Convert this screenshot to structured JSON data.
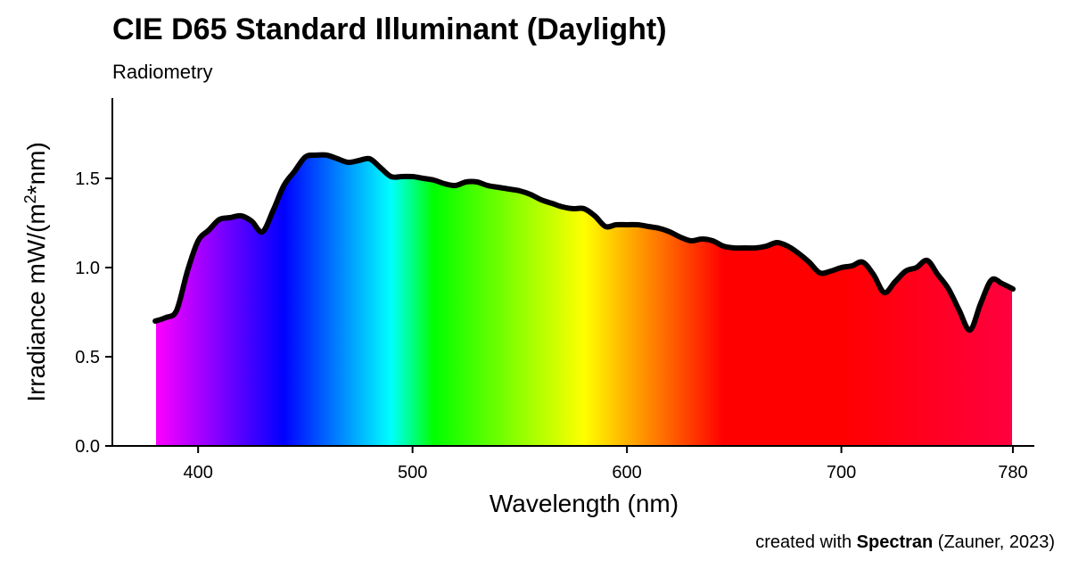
{
  "chart_data": {
    "type": "area",
    "title": "CIE D65 Standard Illuminant (Daylight)",
    "subtitle": "Radiometry",
    "xlabel": "Wavelength (nm)",
    "ylabel_prefix": "Irradiance  mW/(m",
    "ylabel_sup": "2",
    "ylabel_suffix": "*nm)",
    "xlim": [
      360,
      790
    ],
    "ylim": [
      0,
      2.0
    ],
    "x_ticks": [
      400,
      500,
      600,
      700,
      780
    ],
    "y_ticks": [
      0.0,
      0.5,
      1.0,
      1.5
    ],
    "y_tick_labels": [
      "0.0",
      "0.5",
      "1.0",
      "1.5"
    ],
    "fill": "visible-spectrum gradient",
    "line_color": "#000000",
    "grid": false,
    "legend": "none",
    "series": [
      {
        "x": [
          380,
          385,
          390,
          395,
          400,
          405,
          410,
          415,
          420,
          425,
          430,
          435,
          440,
          445,
          450,
          455,
          460,
          465,
          470,
          475,
          480,
          485,
          490,
          495,
          500,
          505,
          510,
          515,
          520,
          525,
          530,
          535,
          540,
          545,
          550,
          555,
          560,
          565,
          570,
          575,
          580,
          585,
          590,
          595,
          600,
          605,
          610,
          615,
          620,
          625,
          630,
          635,
          640,
          645,
          650,
          655,
          660,
          665,
          670,
          675,
          680,
          685,
          690,
          695,
          700,
          705,
          710,
          715,
          720,
          725,
          730,
          735,
          740,
          745,
          750,
          755,
          760,
          765,
          770,
          775,
          780
        ],
        "y": [
          0.7,
          0.72,
          0.76,
          0.98,
          1.15,
          1.21,
          1.27,
          1.28,
          1.29,
          1.26,
          1.2,
          1.32,
          1.46,
          1.54,
          1.62,
          1.63,
          1.63,
          1.61,
          1.59,
          1.6,
          1.61,
          1.56,
          1.51,
          1.51,
          1.51,
          1.5,
          1.49,
          1.47,
          1.46,
          1.48,
          1.48,
          1.46,
          1.45,
          1.44,
          1.43,
          1.41,
          1.38,
          1.36,
          1.34,
          1.33,
          1.33,
          1.29,
          1.23,
          1.24,
          1.24,
          1.24,
          1.23,
          1.22,
          1.2,
          1.17,
          1.15,
          1.16,
          1.15,
          1.12,
          1.11,
          1.11,
          1.11,
          1.12,
          1.14,
          1.12,
          1.08,
          1.03,
          0.97,
          0.98,
          1.0,
          1.01,
          1.03,
          0.96,
          0.86,
          0.92,
          0.98,
          1.0,
          1.04,
          0.96,
          0.88,
          0.76,
          0.65,
          0.8,
          0.93,
          0.91,
          0.88
        ]
      }
    ]
  },
  "credit": {
    "prefix": "created with ",
    "brand": "Spectran",
    "suffix": " (Zauner, 2023)"
  }
}
